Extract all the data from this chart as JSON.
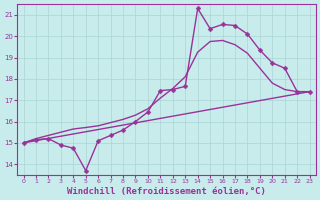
{
  "background_color": "#c8ecec",
  "grid_color": "#aad4d4",
  "line_color": "#993399",
  "marker": "D",
  "markersize": 2.5,
  "linewidth": 1.0,
  "xlabel": "Windchill (Refroidissement éolien,°C)",
  "xlabel_fontsize": 6.5,
  "yticks": [
    14,
    15,
    16,
    17,
    18,
    19,
    20,
    21
  ],
  "xticks": [
    0,
    1,
    2,
    3,
    4,
    5,
    6,
    7,
    8,
    9,
    10,
    11,
    12,
    13,
    14,
    15,
    16,
    17,
    18,
    19,
    20,
    21,
    22,
    23
  ],
  "xlim": [
    -0.5,
    23.5
  ],
  "ylim": [
    13.5,
    21.5
  ],
  "line1_x": [
    0,
    1,
    2,
    3,
    4,
    5,
    6,
    7,
    8,
    9,
    10,
    11,
    12,
    13,
    14,
    15,
    16,
    17,
    18,
    19,
    20,
    21,
    22,
    23
  ],
  "line1_y": [
    15.0,
    15.15,
    15.2,
    14.9,
    14.75,
    13.7,
    15.1,
    15.35,
    15.6,
    16.0,
    16.45,
    17.45,
    17.5,
    17.65,
    21.3,
    20.35,
    20.55,
    20.5,
    20.1,
    19.35,
    18.75,
    18.5,
    17.4,
    17.4
  ],
  "line2_x": [
    0,
    1,
    2,
    3,
    4,
    5,
    6,
    7,
    8,
    9,
    10,
    11,
    12,
    13,
    14,
    15,
    16,
    17,
    18,
    19,
    20,
    21,
    22,
    23
  ],
  "line2_y": [
    15.0,
    15.2,
    15.35,
    15.5,
    15.65,
    15.72,
    15.8,
    15.95,
    16.1,
    16.3,
    16.6,
    17.1,
    17.55,
    18.1,
    19.25,
    19.75,
    19.8,
    19.6,
    19.2,
    18.5,
    17.8,
    17.5,
    17.4,
    17.4
  ],
  "line3_x": [
    0,
    23
  ],
  "line3_y": [
    15.0,
    17.4
  ]
}
